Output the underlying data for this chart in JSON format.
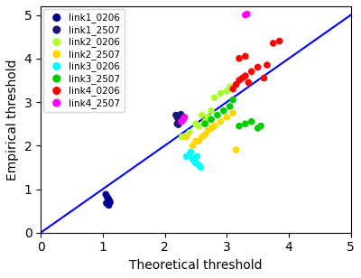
{
  "xlabel": "Theoretical threshold",
  "ylabel": "Empirical threshold",
  "xlim": [
    0,
    5
  ],
  "ylim": [
    0,
    5.2
  ],
  "figsize": [
    4.0,
    3.08
  ],
  "dpi": 100,
  "series": [
    {
      "label": "link1_0206",
      "color": "#00008B",
      "x": [
        1.05,
        1.07,
        1.09,
        1.11,
        1.08,
        1.1,
        1.12,
        1.06,
        1.08,
        1.1
      ],
      "y": [
        0.88,
        0.83,
        0.78,
        0.73,
        0.8,
        0.75,
        0.7,
        0.68,
        0.65,
        0.63
      ]
    },
    {
      "label": "link1_2507",
      "color": "#191970",
      "x": [
        2.18,
        2.2,
        2.22,
        2.24,
        2.26,
        2.28,
        2.2,
        2.22,
        2.25,
        2.27
      ],
      "y": [
        2.7,
        2.65,
        2.6,
        2.55,
        2.72,
        2.68,
        2.5,
        2.48,
        2.62,
        2.58
      ]
    },
    {
      "label": "link2_0206",
      "color": "#ADFF2F",
      "x": [
        2.28,
        2.5,
        2.6,
        2.7,
        2.8,
        2.9,
        3.0,
        3.05,
        2.4,
        2.55,
        2.65,
        2.75
      ],
      "y": [
        2.2,
        2.5,
        2.7,
        2.65,
        3.1,
        3.2,
        3.25,
        3.35,
        2.3,
        2.45,
        2.55,
        2.8
      ]
    },
    {
      "label": "link2_2507",
      "color": "#FFD700",
      "x": [
        2.35,
        2.5,
        2.6,
        2.7,
        2.8,
        2.9,
        3.0,
        3.1,
        3.15,
        2.45,
        2.55,
        2.65,
        2.75
      ],
      "y": [
        2.2,
        2.1,
        2.2,
        2.35,
        2.45,
        2.55,
        2.65,
        2.75,
        1.9,
        2.0,
        2.1,
        2.25,
        2.4
      ]
    },
    {
      "label": "link3_0206",
      "color": "#00FFFF",
      "x": [
        2.35,
        2.4,
        2.45,
        2.5,
        2.55,
        2.58,
        2.42,
        2.47,
        2.52
      ],
      "y": [
        1.75,
        1.8,
        1.7,
        1.6,
        1.55,
        1.5,
        1.85,
        1.65,
        1.75
      ]
    },
    {
      "label": "link3_2507",
      "color": "#00CC00",
      "x": [
        2.65,
        2.75,
        2.85,
        2.95,
        3.05,
        3.1,
        3.2,
        3.3,
        3.4,
        3.5,
        3.55
      ],
      "y": [
        2.5,
        2.6,
        2.7,
        2.8,
        2.9,
        3.05,
        2.45,
        2.5,
        2.55,
        2.4,
        2.45
      ]
    },
    {
      "label": "link4_0206",
      "color": "#FF0000",
      "x": [
        3.1,
        3.15,
        3.2,
        3.25,
        3.3,
        3.35,
        3.4,
        3.5,
        3.6,
        3.65,
        3.75,
        3.85,
        3.2,
        3.3
      ],
      "y": [
        3.3,
        3.4,
        3.5,
        3.55,
        3.6,
        3.45,
        3.7,
        3.8,
        3.55,
        3.85,
        4.35,
        4.4,
        4.0,
        4.05
      ]
    },
    {
      "label": "link4_2507",
      "color": "#FF00FF",
      "x": [
        2.27,
        2.3,
        2.32,
        3.3,
        3.33
      ],
      "y": [
        2.55,
        2.6,
        2.65,
        5.0,
        5.02
      ]
    }
  ]
}
